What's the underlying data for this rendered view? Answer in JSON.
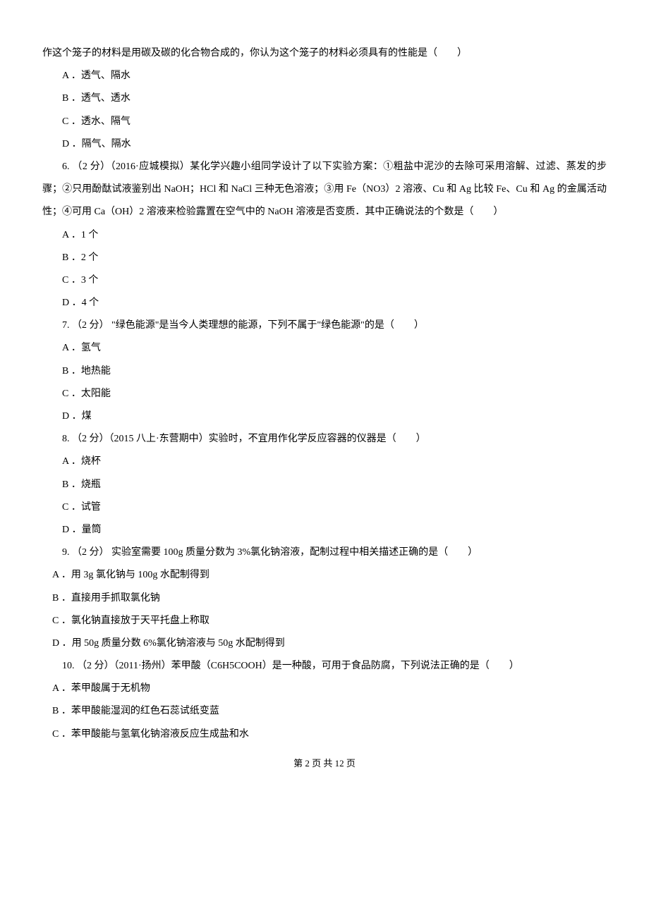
{
  "intro": "作这个笼子的材料是用碳及碳的化合物合成的，你认为这个笼子的材料必须具有的性能是（　　）",
  "q5": {
    "optA": "A ．透气、隔水",
    "optB": "B ．透气、透水",
    "optC": "C ．透水、隔气",
    "optD": "D ．隔气、隔水"
  },
  "q6": {
    "text": "6. （2 分）（2016·应城模拟）某化学兴趣小组同学设计了以下实验方案：①粗盐中泥沙的去除可采用溶解、过滤、蒸发的步骤；②只用酚酞试液鉴别出 NaOH；HCl 和 NaCl 三种无色溶液；③用 Fe（NO3）2 溶液、Cu 和 Ag 比较 Fe、Cu 和 Ag 的金属活动性；④可用 Ca（OH）2 溶液来检验露置在空气中的 NaOH 溶液是否变质．其中正确说法的个数是（　　）",
    "optA": "A ．1 个",
    "optB": "B ．2 个",
    "optC": "C ．3 个",
    "optD": "D ．4 个"
  },
  "q7": {
    "text": "7. （2 分） \"绿色能源\"是当今人类理想的能源，下列不属于\"绿色能源\"的是（　　）",
    "optA": "A ．氢气",
    "optB": "B ．地热能",
    "optC": "C ．太阳能",
    "optD": "D ．煤"
  },
  "q8": {
    "text": "8. （2 分）（2015 八上·东营期中）实验时，不宜用作化学反应容器的仪器是（　　）",
    "optA": "A ．烧杯",
    "optB": "B ．烧瓶",
    "optC": "C ．试管",
    "optD": "D ．量筒"
  },
  "q9": {
    "text": "9. （2 分） 实验室需要 100g 质量分数为 3%氯化钠溶液，配制过程中相关描述正确的是（　　）",
    "optA": "A ．用 3g 氯化钠与 100g 水配制得到",
    "optB": "B ．直接用手抓取氯化钠",
    "optC": "C ．氯化钠直接放于天平托盘上称取",
    "optD": "D ．用 50g 质量分数 6%氯化钠溶液与 50g 水配制得到"
  },
  "q10": {
    "text": "10. （2 分）（2011·扬州）苯甲酸（C6H5COOH）是一种酸，可用于食品防腐，下列说法正确的是（　　）",
    "optA": "A ．苯甲酸属于无机物",
    "optB": "B ．苯甲酸能湿润的红色石蕊试纸变蓝",
    "optC": "C ．苯甲酸能与氢氧化钠溶液反应生成盐和水"
  },
  "footer": "第 2 页 共 12 页"
}
